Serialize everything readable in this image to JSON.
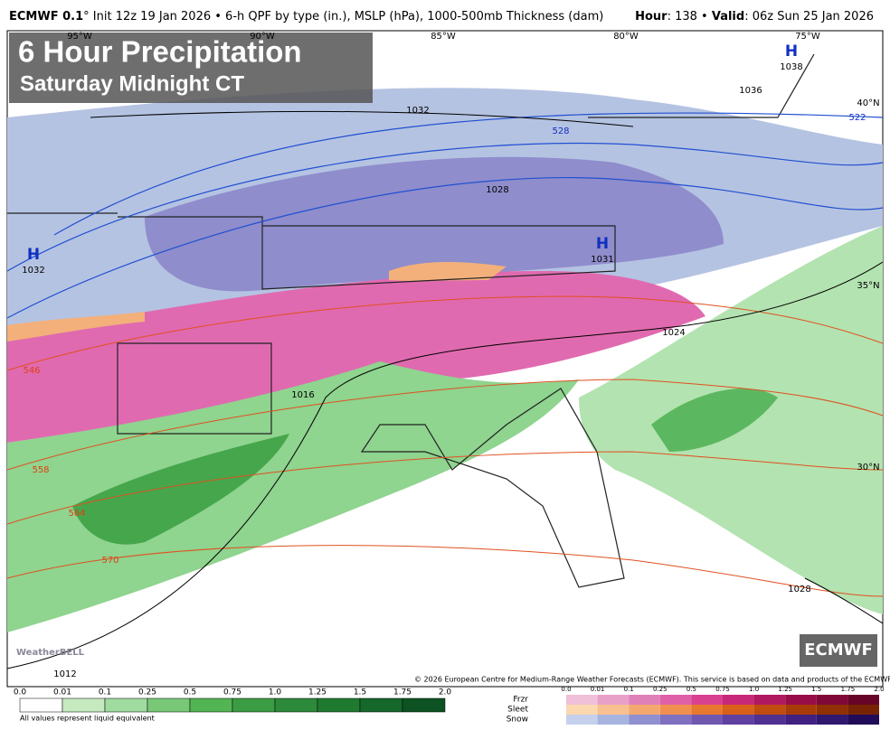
{
  "header": {
    "model": "ECMWF 0.1",
    "degree": "°",
    "description": " Init 12z 19 Jan 2026 • 6-h QPF by type (in.), MSLP (hPa), 1000-500mb Thickness (dam)",
    "hour_label": "Hour",
    "hour": ": 138 • ",
    "valid_label": "Valid",
    "valid": ": 06z Sun 25 Jan 2026"
  },
  "title": {
    "main": "6 Hour Precipitation",
    "sub": "Saturday Midnight CT"
  },
  "map": {
    "longitudes": [
      "95°W",
      "90°W",
      "85°W",
      "80°W",
      "75°W"
    ],
    "latitudes": [
      "40°N",
      "35°N",
      "30°N"
    ],
    "highs": [
      {
        "symbol": "H",
        "pressure": "1038"
      },
      {
        "symbol": "H",
        "pressure": "1032"
      },
      {
        "symbol": "H",
        "pressure": "1031"
      }
    ],
    "isobar_labels": [
      "1032",
      "1036",
      "1028",
      "1024",
      "1016",
      "1012",
      "1028"
    ],
    "thickness_labels": [
      "528",
      "522",
      "546",
      "558",
      "564",
      "570"
    ]
  },
  "copyright": "© 2026 European Centre for Medium-Range Weather Forecasts (ECMWF). This service is based on data and products of the ECMWF.",
  "logos": {
    "weatherbell": "WeatherBELL",
    "ecmwf": "ECMWF"
  },
  "legend": {
    "rain_ticks": [
      "0.0",
      "0.01",
      "0.1",
      "0.25",
      "0.5",
      "0.75",
      "1.0",
      "1.25",
      "1.5",
      "1.75",
      "2.0"
    ],
    "note": "All values represent liquid equivalent",
    "types": [
      "Frzr",
      "Sleet",
      "Snow"
    ],
    "type_ticks": [
      "0.0",
      "0.01",
      "0.1",
      "0.25",
      "0.5",
      "0.75",
      "1.0",
      "1.25",
      "1.5",
      "1.75",
      "2.0"
    ]
  }
}
